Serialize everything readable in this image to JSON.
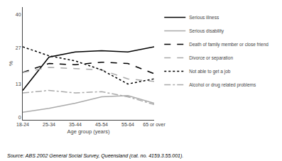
{
  "chart_data": {
    "type": "line",
    "xlabel": "Age group (years)",
    "ylabel": "%",
    "annotations": [
      "Source: ABS 2002 General Social Survey, Queensland (cat. no. 4159.3.55.001)."
    ],
    "categories": [
      "18-24",
      "25-34",
      "35-44",
      "45-54",
      "55-64",
      "65 or over"
    ],
    "series": [
      {
        "name": "Serious illness",
        "color": "#000000",
        "line_style": "solid",
        "values": [
          10.5,
          23.5,
          25.5,
          26.0,
          25.5,
          27.5
        ]
      },
      {
        "name": "Serious disability",
        "color": "#aaaaaa",
        "line_style": "solid",
        "values": [
          2.0,
          3.5,
          5.5,
          8.0,
          8.5,
          5.5
        ]
      },
      {
        "name": "Death of family member or close friend",
        "color": "#000000",
        "line_style": "dashed",
        "values": [
          17.5,
          21.0,
          20.5,
          21.5,
          21.0,
          17.0
        ]
      },
      {
        "name": "Divorce or separation",
        "color": "#aaaaaa",
        "line_style": "dashed",
        "values": [
          17.5,
          19.5,
          19.0,
          18.5,
          15.0,
          14.0
        ]
      },
      {
        "name": "Not able to get a job",
        "color": "#000000",
        "line_style": "dotted",
        "values": [
          27.5,
          24.0,
          22.0,
          18.5,
          13.0,
          15.0
        ]
      },
      {
        "name": "Alcohol or drug related problems",
        "color": "#aaaaaa",
        "line_style": "dashdot",
        "values": [
          9.5,
          10.5,
          9.5,
          10.0,
          8.0,
          5.0
        ]
      }
    ],
    "ylim": [
      -1,
      43
    ],
    "yticks": [
      0,
      13,
      27,
      40
    ],
    "grid": false,
    "legend": "right"
  }
}
